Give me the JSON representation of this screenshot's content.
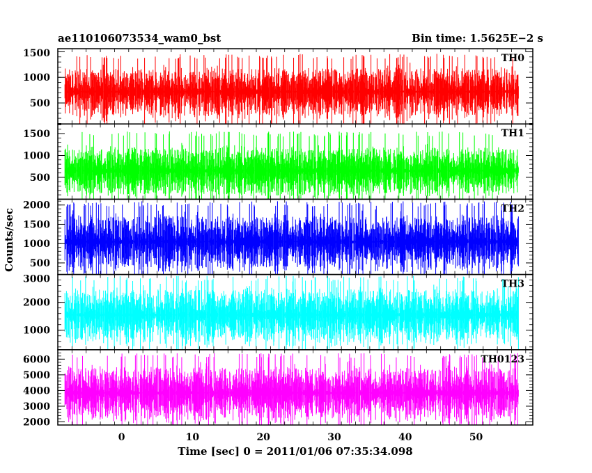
{
  "header": {
    "left_title": "ae110106073534_wam0_bst",
    "right_title": "Bin time: 1.5625E−2 s"
  },
  "chart_data": {
    "type": "line",
    "xlabel": "Time [sec] 0 = 2011/01/06 07:35:34.098",
    "ylabel": "Counts/sec",
    "xlim": [
      -9,
      58
    ],
    "x_ticks": [
      0,
      10,
      20,
      30,
      40,
      50
    ],
    "x_range": [
      -8,
      56
    ],
    "grid": false,
    "panels": [
      {
        "name": "TH0",
        "color": "#ff0000",
        "ylim": [
          90,
          1560
        ],
        "yticks": [
          500,
          1000,
          1500
        ],
        "band": [
          190,
          1460
        ],
        "mean": 720
      },
      {
        "name": "TH1",
        "color": "#00ff00",
        "ylim": [
          0,
          1720
        ],
        "yticks": [
          500,
          1000,
          1500
        ],
        "band": [
          60,
          1550
        ],
        "mean": 650
      },
      {
        "name": "TH2",
        "color": "#0000ff",
        "ylim": [
          200,
          2150
        ],
        "yticks": [
          500,
          1000,
          1500,
          2000
        ],
        "band": [
          260,
          2100
        ],
        "mean": 1050
      },
      {
        "name": "TH3",
        "color": "#00ffff",
        "ylim": [
          300,
          3000
        ],
        "yticks": [
          1000,
          2000,
          3000
        ],
        "band": [
          420,
          2950
        ],
        "mean": 1550
      },
      {
        "name": "TH0123",
        "color": "#ff00ff",
        "ylim": [
          1800,
          6600
        ],
        "yticks": [
          2000,
          3000,
          4000,
          5000,
          6000
        ],
        "band": [
          1900,
          6400
        ],
        "mean": 3850
      }
    ]
  }
}
